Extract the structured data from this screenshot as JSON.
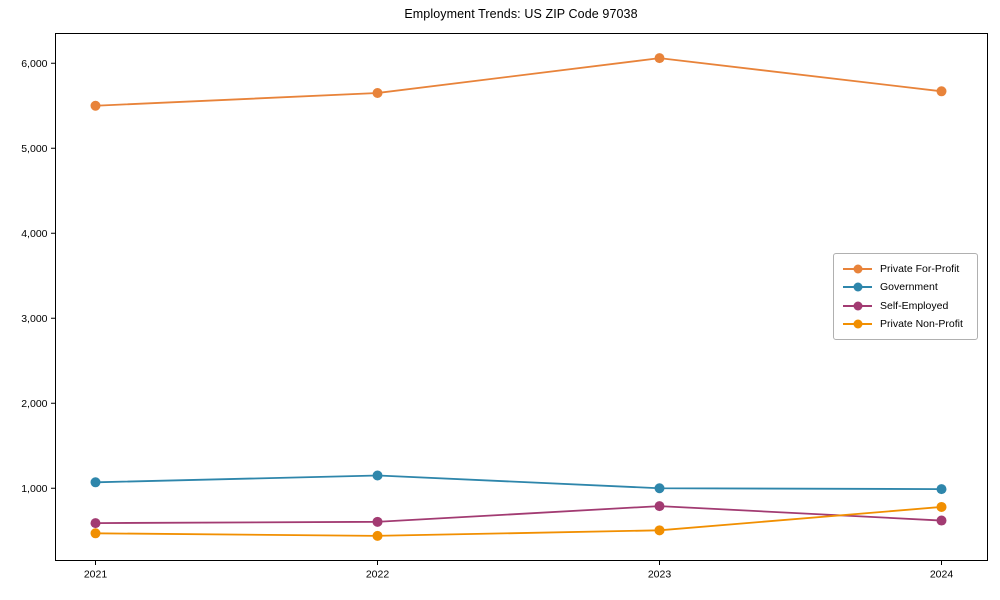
{
  "chart_data": {
    "type": "line",
    "title": "Employment Trends: US ZIP Code 97038",
    "xlabel": "",
    "ylabel": "",
    "categories": [
      "2021",
      "2022",
      "2023",
      "2024"
    ],
    "series": [
      {
        "name": "Private For-Profit",
        "color": "#E8833A",
        "values": [
          5500,
          5650,
          6060,
          5670
        ]
      },
      {
        "name": "Government",
        "color": "#2E86AB",
        "values": [
          1070,
          1150,
          1000,
          990
        ]
      },
      {
        "name": "Self-Employed",
        "color": "#A23B72",
        "values": [
          590,
          605,
          790,
          620
        ]
      },
      {
        "name": "Private Non-Profit",
        "color": "#F18F01",
        "values": [
          470,
          440,
          505,
          780
        ]
      }
    ],
    "ylim": [
      150,
      6350
    ],
    "yticks": [
      1000,
      2000,
      3000,
      4000,
      5000,
      6000
    ],
    "ytick_labels": [
      "1,000",
      "2,000",
      "3,000",
      "4,000",
      "5,000",
      "6,000"
    ],
    "grid": false,
    "marker": "circle",
    "legend_position": "center-right",
    "frame_color": "#000000",
    "background_color": "#ffffff"
  }
}
